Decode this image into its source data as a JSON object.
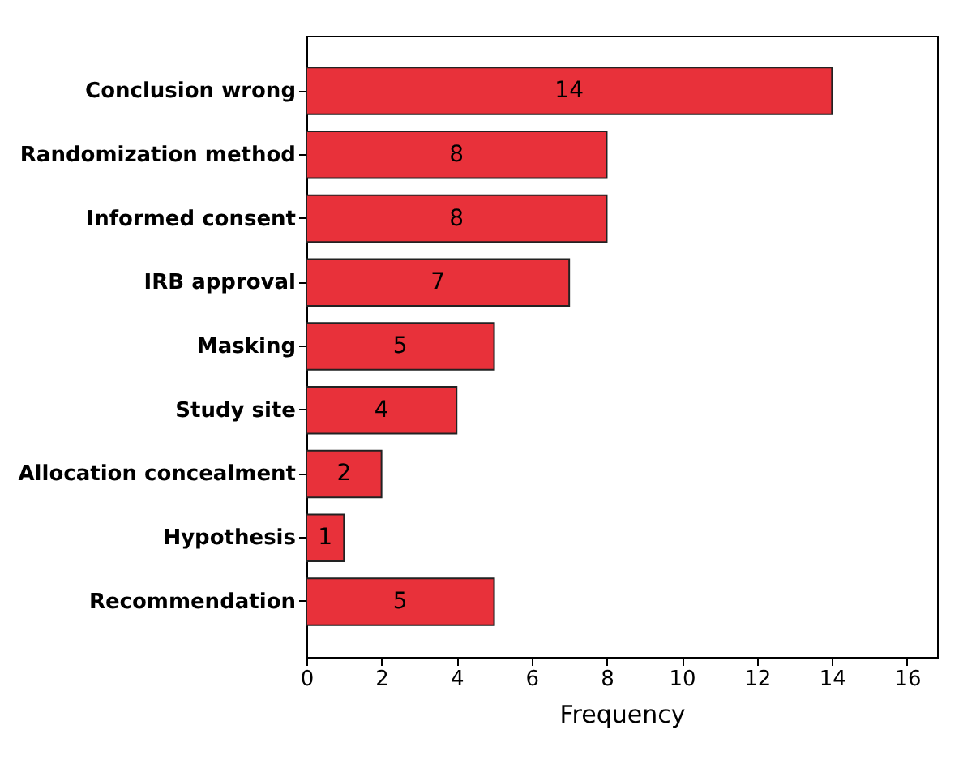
{
  "chart_data": {
    "type": "bar",
    "orientation": "horizontal",
    "xlabel": "Frequency",
    "categories": [
      "Conclusion wrong",
      "Randomization method",
      "Informed consent",
      "IRB approval",
      "Masking",
      "Study site",
      "Allocation concealment",
      "Hypothesis",
      "Recommendation"
    ],
    "values": [
      14,
      8,
      8,
      7,
      5,
      4,
      2,
      1,
      5
    ],
    "color": "#e8313a",
    "data_labels": true,
    "xlim": [
      0,
      16.8
    ],
    "xticks": [
      0,
      2,
      4,
      6,
      8,
      10,
      12,
      14,
      16
    ],
    "grid": false
  }
}
